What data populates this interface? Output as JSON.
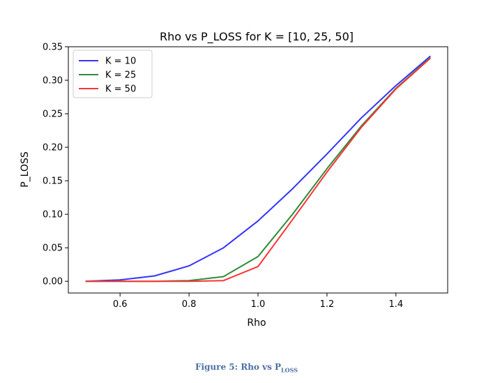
{
  "chart_data": {
    "type": "line",
    "title": "Rho vs P_LOSS for K = [10, 25, 50]",
    "xlabel": "Rho",
    "ylabel": "P_LOSS",
    "xlim": [
      0.45,
      1.55
    ],
    "ylim": [
      -0.0175,
      0.35
    ],
    "xticks": [
      0.6,
      0.8,
      1.0,
      1.2,
      1.4
    ],
    "xtick_labels": [
      "0.6",
      "0.8",
      "1.0",
      "1.2",
      "1.4"
    ],
    "yticks": [
      0.0,
      0.05,
      0.1,
      0.15,
      0.2,
      0.25,
      0.3,
      0.35
    ],
    "ytick_labels": [
      "0.00",
      "0.05",
      "0.10",
      "0.15",
      "0.20",
      "0.25",
      "0.30",
      "0.35"
    ],
    "grid": false,
    "legend_position": "top-left",
    "x": [
      0.5,
      0.6,
      0.7,
      0.8,
      0.9,
      1.0,
      1.1,
      1.2,
      1.3,
      1.4,
      1.5
    ],
    "series": [
      {
        "name": "K = 10",
        "color": "#3333ff",
        "values": [
          0.0,
          0.002,
          0.008,
          0.023,
          0.05,
          0.09,
          0.138,
          0.19,
          0.244,
          0.292,
          0.336
        ]
      },
      {
        "name": "K = 25",
        "color": "#2e8b3c",
        "values": [
          0.0,
          0.0,
          0.0,
          0.001,
          0.007,
          0.037,
          0.1,
          0.168,
          0.232,
          0.288,
          0.334
        ]
      },
      {
        "name": "K = 50",
        "color": "#ff3333",
        "values": [
          0.0,
          0.0,
          0.0,
          0.0,
          0.001,
          0.022,
          0.092,
          0.163,
          0.23,
          0.287,
          0.333
        ]
      }
    ]
  },
  "caption": {
    "prefix": "Figure 5: Rho vs P",
    "subscript": "LOSS"
  }
}
